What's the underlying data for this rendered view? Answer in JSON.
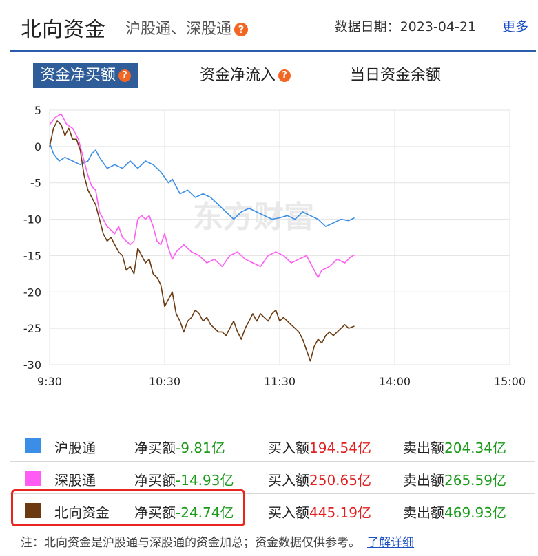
{
  "header": {
    "title": "北向资金",
    "subtitle": "沪股通、深股通",
    "date_label": "数据日期：2023-04-21",
    "more_label": "更多"
  },
  "tabs": [
    {
      "label": "资金净买额",
      "active": true,
      "help": true
    },
    {
      "label": "资金净流入",
      "active": false,
      "help": true
    },
    {
      "label": "当日资金余额",
      "active": false,
      "help": false
    }
  ],
  "help_icon_glyph": "?",
  "watermark": "东方财富",
  "chart_data": {
    "type": "line",
    "x_ticks": [
      "9:30",
      "10:30",
      "11:30",
      "14:00",
      "15:00"
    ],
    "y_ticks": [
      "5",
      "0",
      "-5",
      "-10",
      "-15",
      "-20",
      "-25",
      "-30"
    ],
    "ylim": [
      -30,
      5
    ],
    "x_range_minutes": [
      0,
      240
    ],
    "series": [
      {
        "name": "沪股通",
        "color": "#3a8ee6",
        "points": [
          [
            0,
            0.5
          ],
          [
            2,
            -1
          ],
          [
            5,
            -2
          ],
          [
            8,
            -1.5
          ],
          [
            12,
            -2
          ],
          [
            16,
            -2.5
          ],
          [
            20,
            -2
          ],
          [
            22,
            -1
          ],
          [
            24,
            -0.5
          ],
          [
            26,
            -1.5
          ],
          [
            30,
            -3
          ],
          [
            34,
            -2.5
          ],
          [
            38,
            -3
          ],
          [
            42,
            -2
          ],
          [
            46,
            -3
          ],
          [
            50,
            -2
          ],
          [
            54,
            -2.5
          ],
          [
            58,
            -3.5
          ],
          [
            62,
            -5
          ],
          [
            64,
            -4.5
          ],
          [
            66,
            -5.5
          ],
          [
            68,
            -6.5
          ],
          [
            72,
            -6
          ],
          [
            76,
            -7
          ],
          [
            80,
            -6.5
          ],
          [
            84,
            -7
          ],
          [
            88,
            -8
          ],
          [
            92,
            -9
          ],
          [
            96,
            -10
          ],
          [
            100,
            -9
          ],
          [
            104,
            -8.5
          ],
          [
            108,
            -9
          ],
          [
            112,
            -9.5
          ],
          [
            116,
            -10
          ],
          [
            120,
            -9.8
          ],
          [
            124,
            -9.5
          ],
          [
            128,
            -10
          ],
          [
            132,
            -9
          ],
          [
            136,
            -9.5
          ],
          [
            140,
            -10
          ],
          [
            144,
            -11
          ],
          [
            148,
            -10.5
          ],
          [
            152,
            -10
          ],
          [
            156,
            -10.2
          ],
          [
            159,
            -9.8
          ]
        ]
      },
      {
        "name": "深股通",
        "color": "#ff5cf5",
        "points": [
          [
            0,
            3
          ],
          [
            3,
            4
          ],
          [
            6,
            4.5
          ],
          [
            9,
            3
          ],
          [
            12,
            2.5
          ],
          [
            15,
            1
          ],
          [
            18,
            -2
          ],
          [
            20,
            -4
          ],
          [
            22,
            -5.5
          ],
          [
            24,
            -6
          ],
          [
            26,
            -9
          ],
          [
            28,
            -10
          ],
          [
            30,
            -11
          ],
          [
            32,
            -11.5
          ],
          [
            34,
            -12
          ],
          [
            36,
            -11
          ],
          [
            38,
            -12.5
          ],
          [
            40,
            -13
          ],
          [
            42,
            -13.5
          ],
          [
            44,
            -13
          ],
          [
            46,
            -10
          ],
          [
            48,
            -9.5
          ],
          [
            50,
            -10
          ],
          [
            52,
            -9.5
          ],
          [
            54,
            -11
          ],
          [
            56,
            -13
          ],
          [
            58,
            -13.5
          ],
          [
            60,
            -12
          ],
          [
            62,
            -14
          ],
          [
            64,
            -15.5
          ],
          [
            66,
            -14.5
          ],
          [
            70,
            -13.5
          ],
          [
            74,
            -14.5
          ],
          [
            78,
            -15
          ],
          [
            82,
            -16
          ],
          [
            86,
            -15.5
          ],
          [
            90,
            -16.5
          ],
          [
            94,
            -15
          ],
          [
            98,
            -14.5
          ],
          [
            102,
            -15.5
          ],
          [
            106,
            -16
          ],
          [
            110,
            -16.5
          ],
          [
            114,
            -15
          ],
          [
            118,
            -14.5
          ],
          [
            122,
            -15
          ],
          [
            126,
            -16
          ],
          [
            130,
            -15.5
          ],
          [
            134,
            -15
          ],
          [
            138,
            -17
          ],
          [
            140,
            -18
          ],
          [
            142,
            -17
          ],
          [
            146,
            -16.5
          ],
          [
            150,
            -15.5
          ],
          [
            154,
            -16
          ],
          [
            157,
            -15.2
          ],
          [
            159,
            -14.9
          ]
        ]
      },
      {
        "name": "北向资金",
        "color": "#6b3a10",
        "points": [
          [
            0,
            0
          ],
          [
            2,
            2.5
          ],
          [
            4,
            3.5
          ],
          [
            6,
            3
          ],
          [
            8,
            1.5
          ],
          [
            10,
            2.5
          ],
          [
            12,
            1
          ],
          [
            14,
            1
          ],
          [
            16,
            -0.5
          ],
          [
            18,
            -4
          ],
          [
            20,
            -6
          ],
          [
            22,
            -7
          ],
          [
            24,
            -8
          ],
          [
            26,
            -10
          ],
          [
            28,
            -12
          ],
          [
            30,
            -13
          ],
          [
            32,
            -12.5
          ],
          [
            34,
            -13.5
          ],
          [
            36,
            -14.5
          ],
          [
            38,
            -15
          ],
          [
            40,
            -17
          ],
          [
            42,
            -16.5
          ],
          [
            44,
            -17.5
          ],
          [
            46,
            -14
          ],
          [
            48,
            -15
          ],
          [
            50,
            -16
          ],
          [
            52,
            -15.5
          ],
          [
            54,
            -17.5
          ],
          [
            56,
            -18
          ],
          [
            58,
            -19
          ],
          [
            60,
            -22
          ],
          [
            62,
            -21
          ],
          [
            64,
            -20
          ],
          [
            66,
            -23
          ],
          [
            68,
            -24
          ],
          [
            70,
            -25.5
          ],
          [
            72,
            -24
          ],
          [
            74,
            -23.5
          ],
          [
            76,
            -22.5
          ],
          [
            78,
            -23
          ],
          [
            80,
            -24
          ],
          [
            82,
            -23.5
          ],
          [
            84,
            -24.5
          ],
          [
            86,
            -25
          ],
          [
            88,
            -25.5
          ],
          [
            90,
            -25.5
          ],
          [
            92,
            -26
          ],
          [
            94,
            -25
          ],
          [
            96,
            -24
          ],
          [
            98,
            -25.5
          ],
          [
            100,
            -26.5
          ],
          [
            102,
            -25
          ],
          [
            104,
            -24
          ],
          [
            106,
            -23
          ],
          [
            108,
            -24
          ],
          [
            110,
            -23
          ],
          [
            112,
            -23.5
          ],
          [
            114,
            -24
          ],
          [
            116,
            -23
          ],
          [
            118,
            -22.5
          ],
          [
            120,
            -24
          ],
          [
            122,
            -23.5
          ],
          [
            124,
            -24
          ],
          [
            126,
            -24.5
          ],
          [
            128,
            -25
          ],
          [
            130,
            -25.5
          ],
          [
            132,
            -26.5
          ],
          [
            134,
            -28
          ],
          [
            136,
            -29.5
          ],
          [
            138,
            -27.5
          ],
          [
            140,
            -26.5
          ],
          [
            142,
            -27
          ],
          [
            144,
            -26
          ],
          [
            146,
            -25.5
          ],
          [
            148,
            -26
          ],
          [
            150,
            -25.5
          ],
          [
            152,
            -25
          ],
          [
            154,
            -24.5
          ],
          [
            156,
            -25
          ],
          [
            159,
            -24.7
          ]
        ]
      }
    ]
  },
  "legend": [
    {
      "name": "沪股通",
      "color": "#3a8ee6",
      "net_label": "净买额",
      "net_value": "-9.81亿",
      "buy_label": "买入额",
      "buy_value": "194.54亿",
      "sell_label": "卖出额",
      "sell_value": "204.34亿"
    },
    {
      "name": "深股通",
      "color": "#ff5cf5",
      "net_label": "净买额",
      "net_value": "-14.93亿",
      "buy_label": "买入额",
      "buy_value": "250.65亿",
      "sell_label": "卖出额",
      "sell_value": "265.59亿"
    },
    {
      "name": "北向资金",
      "color": "#6b3a10",
      "net_label": "净买额",
      "net_value": "-24.74亿",
      "buy_label": "买入额",
      "buy_value": "445.19亿",
      "sell_label": "卖出额",
      "sell_value": "469.93亿"
    }
  ],
  "note": {
    "text": "注：北向资金是沪股通与深股通的资金加总；资金数据仅供参考。",
    "link": "了解详细"
  }
}
